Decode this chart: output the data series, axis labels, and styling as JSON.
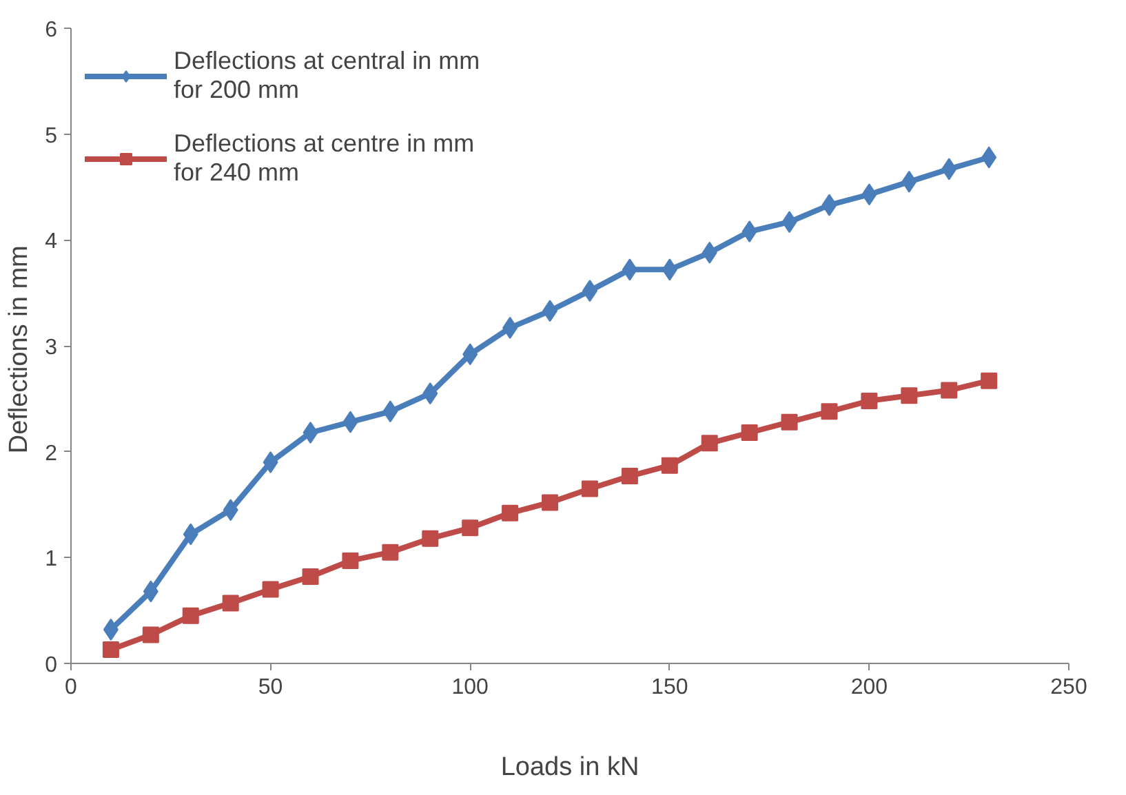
{
  "chart_data": {
    "type": "line",
    "xlabel": "Loads in kN",
    "ylabel": "Deflections  in mm",
    "x": [
      10,
      20,
      30,
      40,
      50,
      60,
      70,
      80,
      90,
      100,
      110,
      120,
      130,
      140,
      150,
      160,
      170,
      180,
      190,
      200,
      210,
      220,
      230
    ],
    "series": [
      {
        "name": "Deflections at central in mm\nfor 200 mm",
        "color": "#4a7ebb",
        "marker": "diamond",
        "values": [
          0.32,
          0.68,
          1.22,
          1.45,
          1.9,
          2.18,
          2.28,
          2.38,
          2.55,
          2.92,
          3.17,
          3.33,
          3.52,
          3.72,
          3.72,
          3.88,
          4.08,
          4.17,
          4.33,
          4.43,
          4.55,
          4.67,
          4.78
        ]
      },
      {
        "name": "Deflections at centre in mm\nfor 240 mm",
        "color": "#be4b48",
        "marker": "square",
        "values": [
          0.13,
          0.27,
          0.45,
          0.57,
          0.7,
          0.82,
          0.97,
          1.05,
          1.18,
          1.28,
          1.42,
          1.52,
          1.65,
          1.77,
          1.87,
          2.08,
          2.18,
          2.28,
          2.38,
          2.48,
          2.53,
          2.58,
          2.67
        ]
      }
    ],
    "xlim": [
      0,
      250
    ],
    "xticks": [
      0,
      50,
      100,
      150,
      200,
      250
    ],
    "ylim": [
      0,
      6
    ],
    "yticks": [
      0,
      1,
      2,
      3,
      4,
      5,
      6
    ],
    "grid": false,
    "legend": "top left"
  }
}
